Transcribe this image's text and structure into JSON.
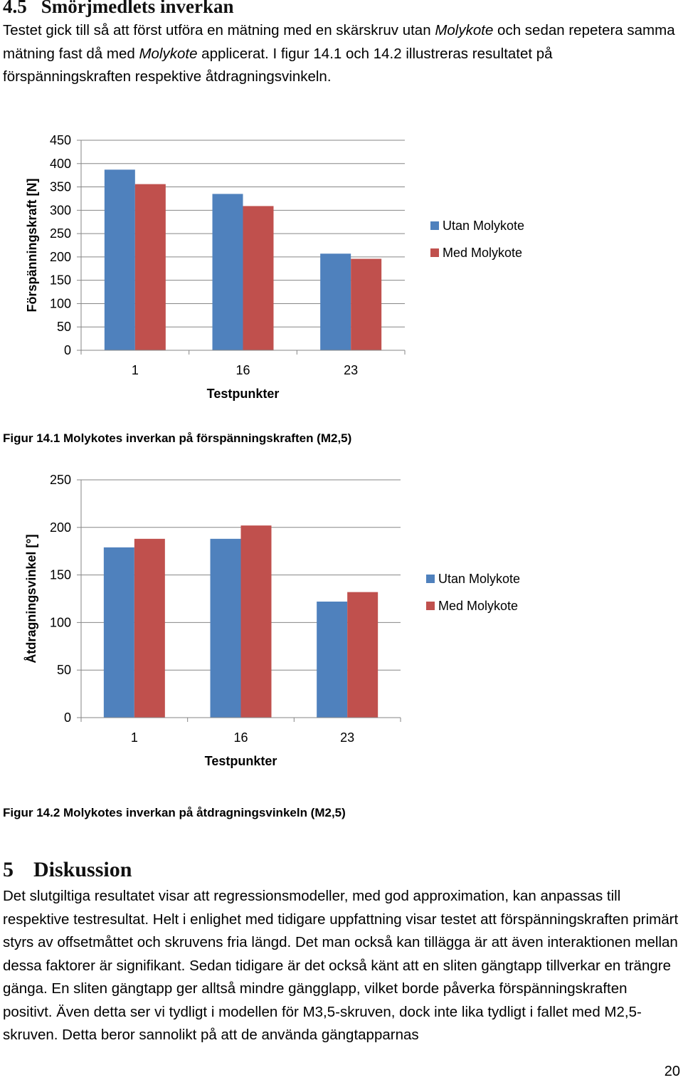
{
  "section": {
    "number": "4.5",
    "title": "Smörjmedlets inverkan",
    "intro_text": [
      "Testet gick till så att först utföra en mätning med en skärskruv utan ",
      "Molykote",
      " och sedan repetera samma mätning fast då med ",
      "Molykote",
      " applicerat. I figur 14.1 och 14.2 illustreras resultatet på förspänningskraften respektive åtdragningsvinkeln."
    ]
  },
  "figure1": {
    "caption": "Figur 14.1 Molykotes inverkan på förspänningskraften (M2,5)"
  },
  "figure2": {
    "caption": "Figur 14.2 Molykotes inverkan på åtdragningsvinkeln (M2,5)"
  },
  "section5": {
    "number": "5",
    "title": "Diskussion",
    "text": "Det slutgiltiga resultatet visar att regressionsmodeller, med god approximation, kan anpassas till respektive testresultat. Helt i enlighet med tidigare uppfattning visar testet att förspänningskraften primärt styrs av offsetmåttet och skruvens fria längd. Det man också kan tillägga är att även interaktionen mellan dessa faktorer är signifikant. Sedan tidigare är det också känt att en sliten gängtapp tillverkar en trängre gänga. En sliten gängtapp ger alltså mindre gängglapp, vilket borde påverka förspänningskraften positivt. Även detta ser vi tydligt i modellen för M3,5-skruven, dock inte lika tydligt i fallet med M2,5-skruven. Detta beror sannolikt på att de använda gängtapparnas"
  },
  "page_number": "20",
  "colors": {
    "series1": "#4F81BD",
    "series2": "#C0504D",
    "grid": "#868686"
  },
  "chart_data": [
    {
      "type": "bar",
      "title": "",
      "xlabel": "Testpunkter",
      "ylabel": "Förspänningskraft [N]",
      "categories": [
        "1",
        "16",
        "23"
      ],
      "ylim": [
        0,
        450
      ],
      "yticks": [
        0,
        50,
        100,
        150,
        200,
        250,
        300,
        350,
        400,
        450
      ],
      "series": [
        {
          "name": "Utan Molykote",
          "values": [
            387,
            335,
            207
          ]
        },
        {
          "name": "Med Molykote",
          "values": [
            356,
            309,
            196
          ]
        }
      ],
      "legend": "right"
    },
    {
      "type": "bar",
      "title": "",
      "xlabel": "Testpunkter",
      "ylabel": "Åtdragningsvinkel [°]",
      "categories": [
        "1",
        "16",
        "23"
      ],
      "ylim": [
        0,
        250
      ],
      "yticks": [
        0,
        50,
        100,
        150,
        200,
        250
      ],
      "series": [
        {
          "name": "Utan Molykote",
          "values": [
            179,
            188,
            122
          ]
        },
        {
          "name": "Med Molykote",
          "values": [
            188,
            202,
            132
          ]
        }
      ],
      "legend": "right"
    }
  ]
}
